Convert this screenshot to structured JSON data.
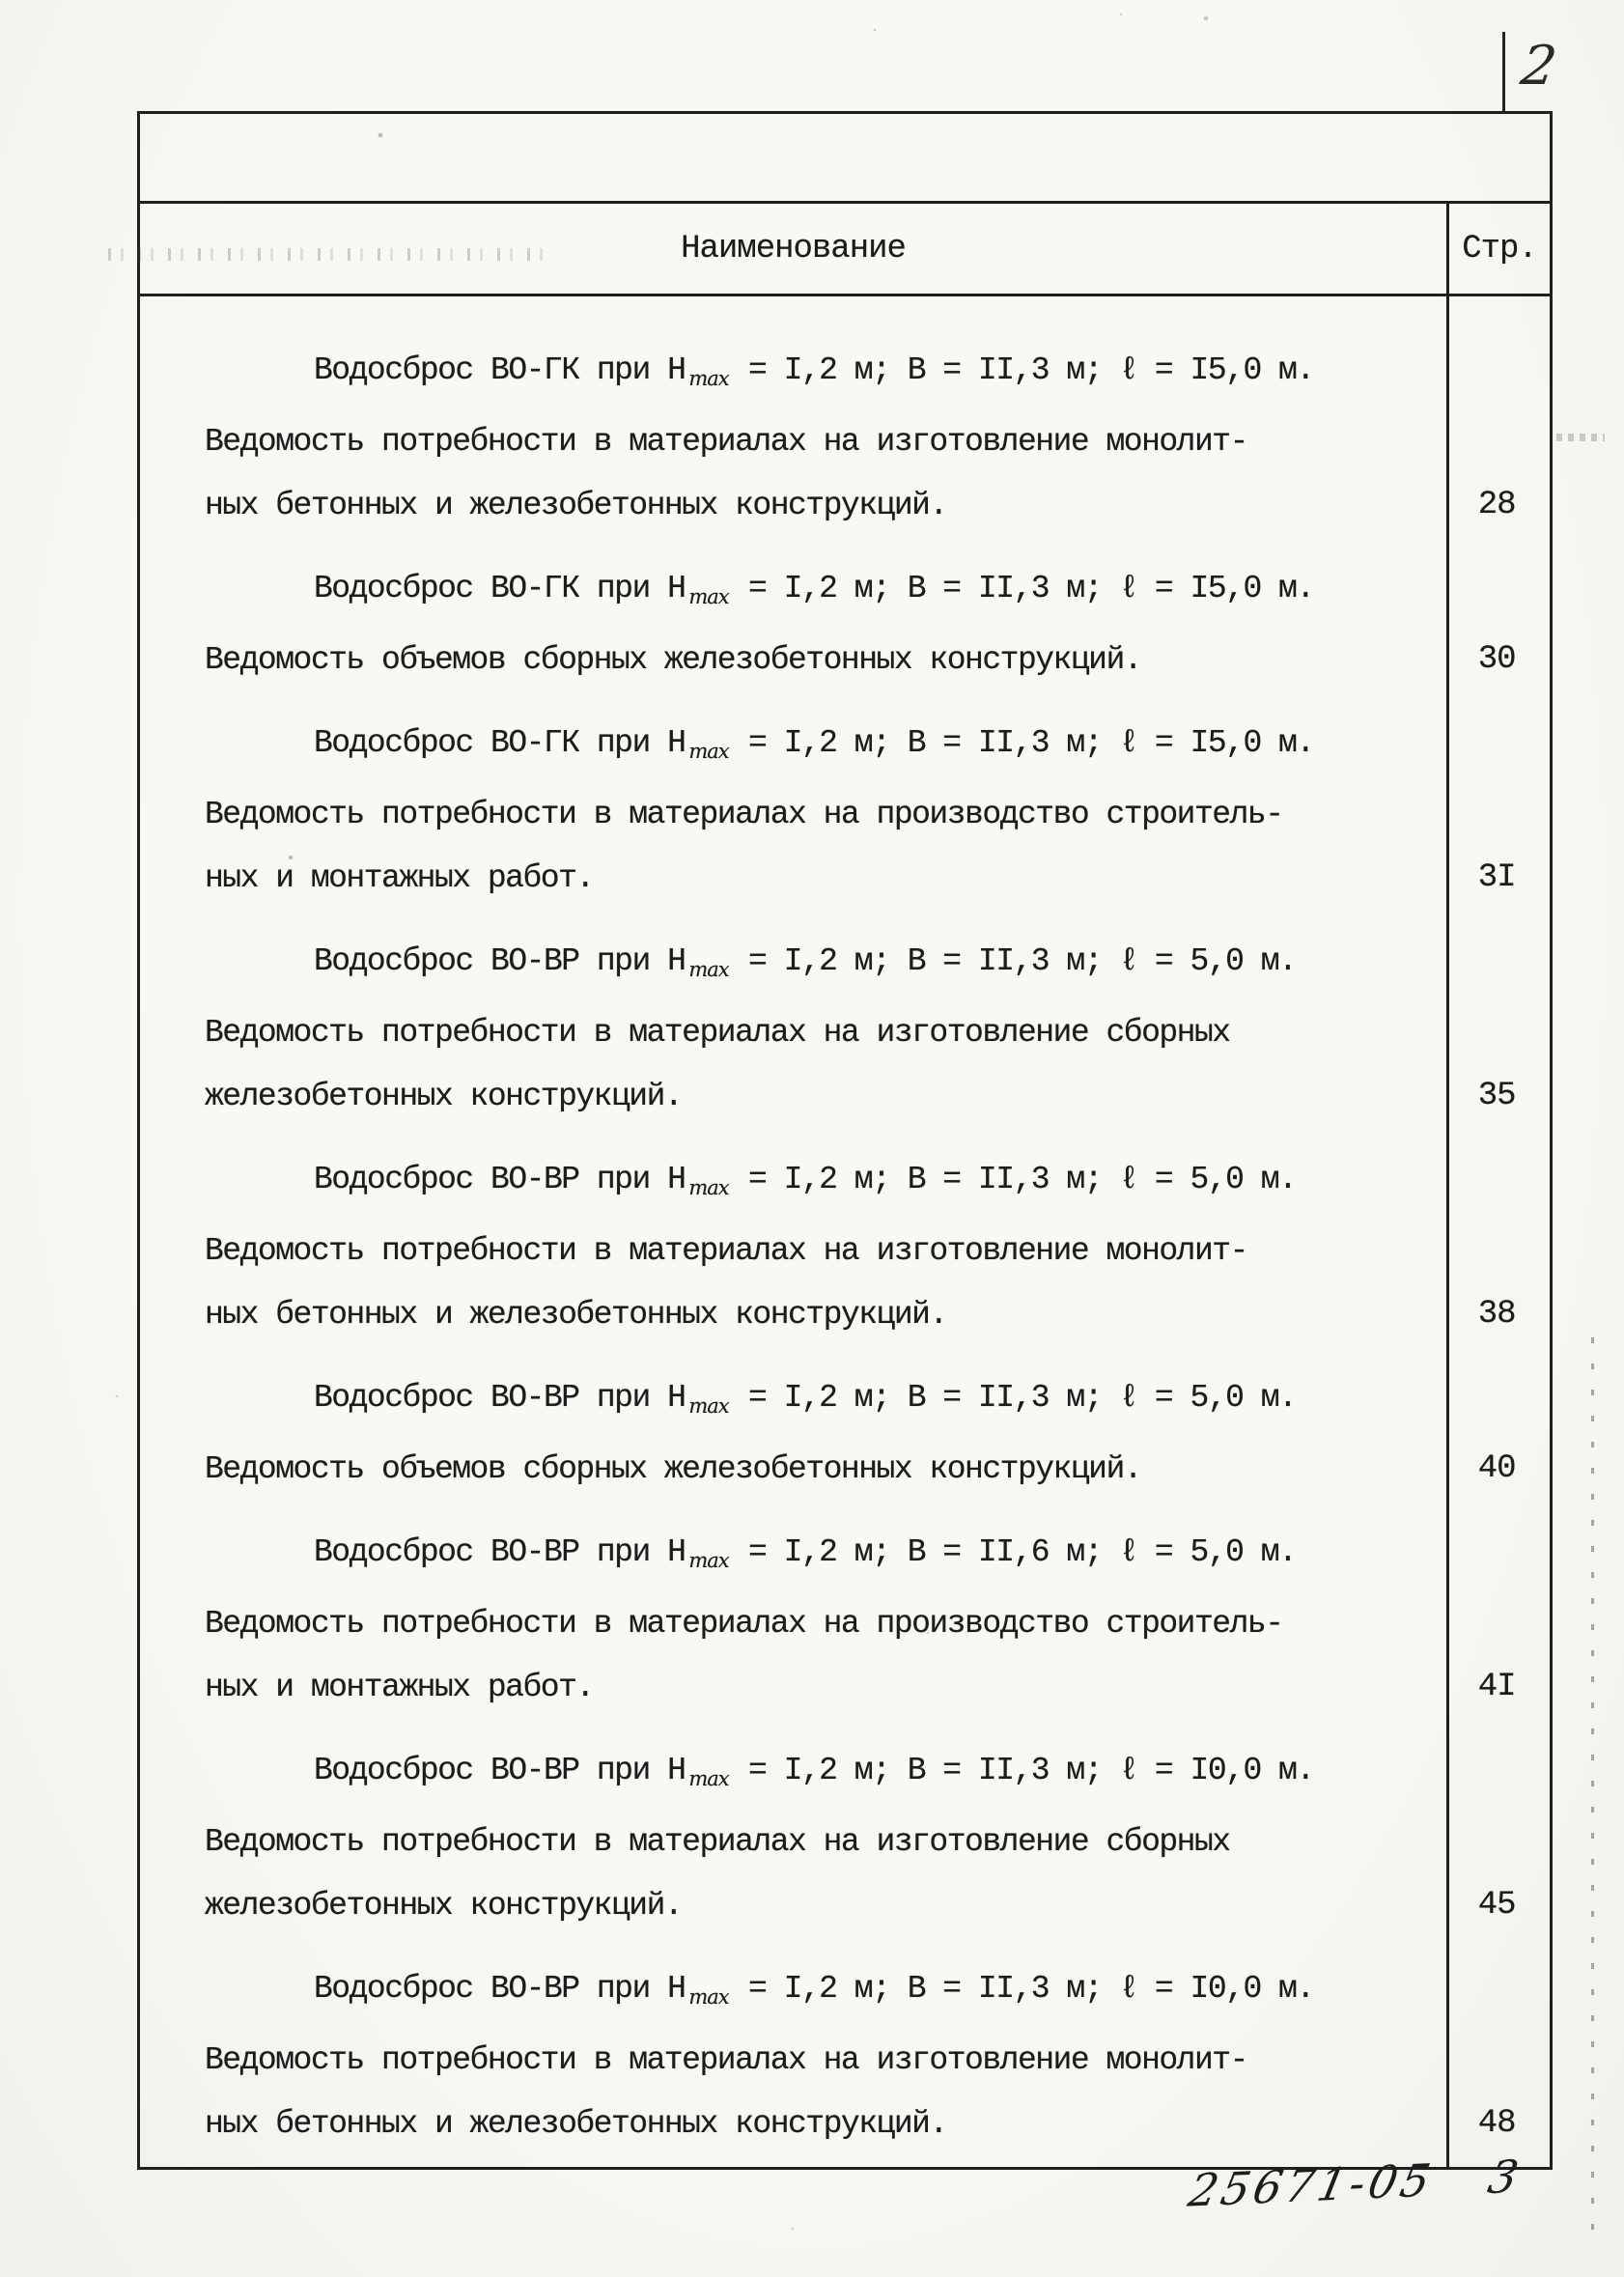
{
  "page": {
    "page_number": "2",
    "footer_code": "25671-05",
    "footer_page": "3"
  },
  "table": {
    "header": {
      "name_col": "Наименование",
      "page_col": "Стр."
    },
    "entries": [
      {
        "title_pre": "Водосброс ВО-ГК при Н",
        "title_sub": "max",
        "title_post": " = I,2 м; В = II,3 м; ℓ = I5,0 м.",
        "body_lines": [
          "Ведомость потребности в материалах на изготовление монолит-",
          "ных бетонных и железобетонных конструкций."
        ],
        "page": "28"
      },
      {
        "title_pre": "Водосброс ВО-ГК при Н",
        "title_sub": "max",
        "title_post": " = I,2 м; В = II,3 м; ℓ = I5,0 м.",
        "body_lines": [
          "Ведомость объемов сборных железобетонных конструкций."
        ],
        "page": "30"
      },
      {
        "title_pre": "Водосброс ВО-ГК при Н",
        "title_sub": "max",
        "title_post": " = I,2 м; В = II,3 м; ℓ = I5,0 м.",
        "body_lines": [
          "Ведомость потребности в материалах на производство строитель-",
          "ных и монтажных работ."
        ],
        "page": "3I"
      },
      {
        "title_pre": "Водосброс ВО-ВР при Н",
        "title_sub": "max",
        "title_post": " = I,2 м; В = II,3 м; ℓ = 5,0 м.",
        "body_lines": [
          "Ведомость потребности в материалах на изготовление сборных",
          "железобетонных конструкций."
        ],
        "page": "35"
      },
      {
        "title_pre": "Водосброс ВО-ВР при Н",
        "title_sub": "max",
        "title_post": " = I,2 м; В = II,3 м; ℓ = 5,0 м.",
        "body_lines": [
          "Ведомость потребности в материалах на изготовление монолит-",
          "ных бетонных и железобетонных конструкций."
        ],
        "page": "38"
      },
      {
        "title_pre": "Водосброс ВО-ВР при Н",
        "title_sub": "max",
        "title_post": " = I,2 м; В = II,3 м; ℓ = 5,0 м.",
        "body_lines": [
          "Ведомость объемов сборных железобетонных конструкций."
        ],
        "page": "40"
      },
      {
        "title_pre": "Водосброс ВО-ВР при Н",
        "title_sub": "max",
        "title_post": " = I,2 м; В = II,6 м; ℓ = 5,0 м.",
        "body_lines": [
          "Ведомость потребности в материалах на производство строитель-",
          "ных и монтажных работ."
        ],
        "page": "4I"
      },
      {
        "title_pre": "Водосброс ВО-ВР при Н",
        "title_sub": "max",
        "title_post": " = I,2 м; В = II,3 м; ℓ = I0,0 м.",
        "body_lines": [
          "Ведомость потребности в материалах на изготовление сборных",
          "железобетонных конструкций."
        ],
        "page": "45"
      },
      {
        "title_pre": "Водосброс ВО-ВР при Н",
        "title_sub": "max",
        "title_post": " = I,2 м; В = II,3 м; ℓ = I0,0 м.",
        "body_lines": [
          "Ведомость потребности в материалах на изготовление монолит-",
          "ных бетонных и железобетонных конструкций."
        ],
        "page": "48"
      }
    ]
  }
}
